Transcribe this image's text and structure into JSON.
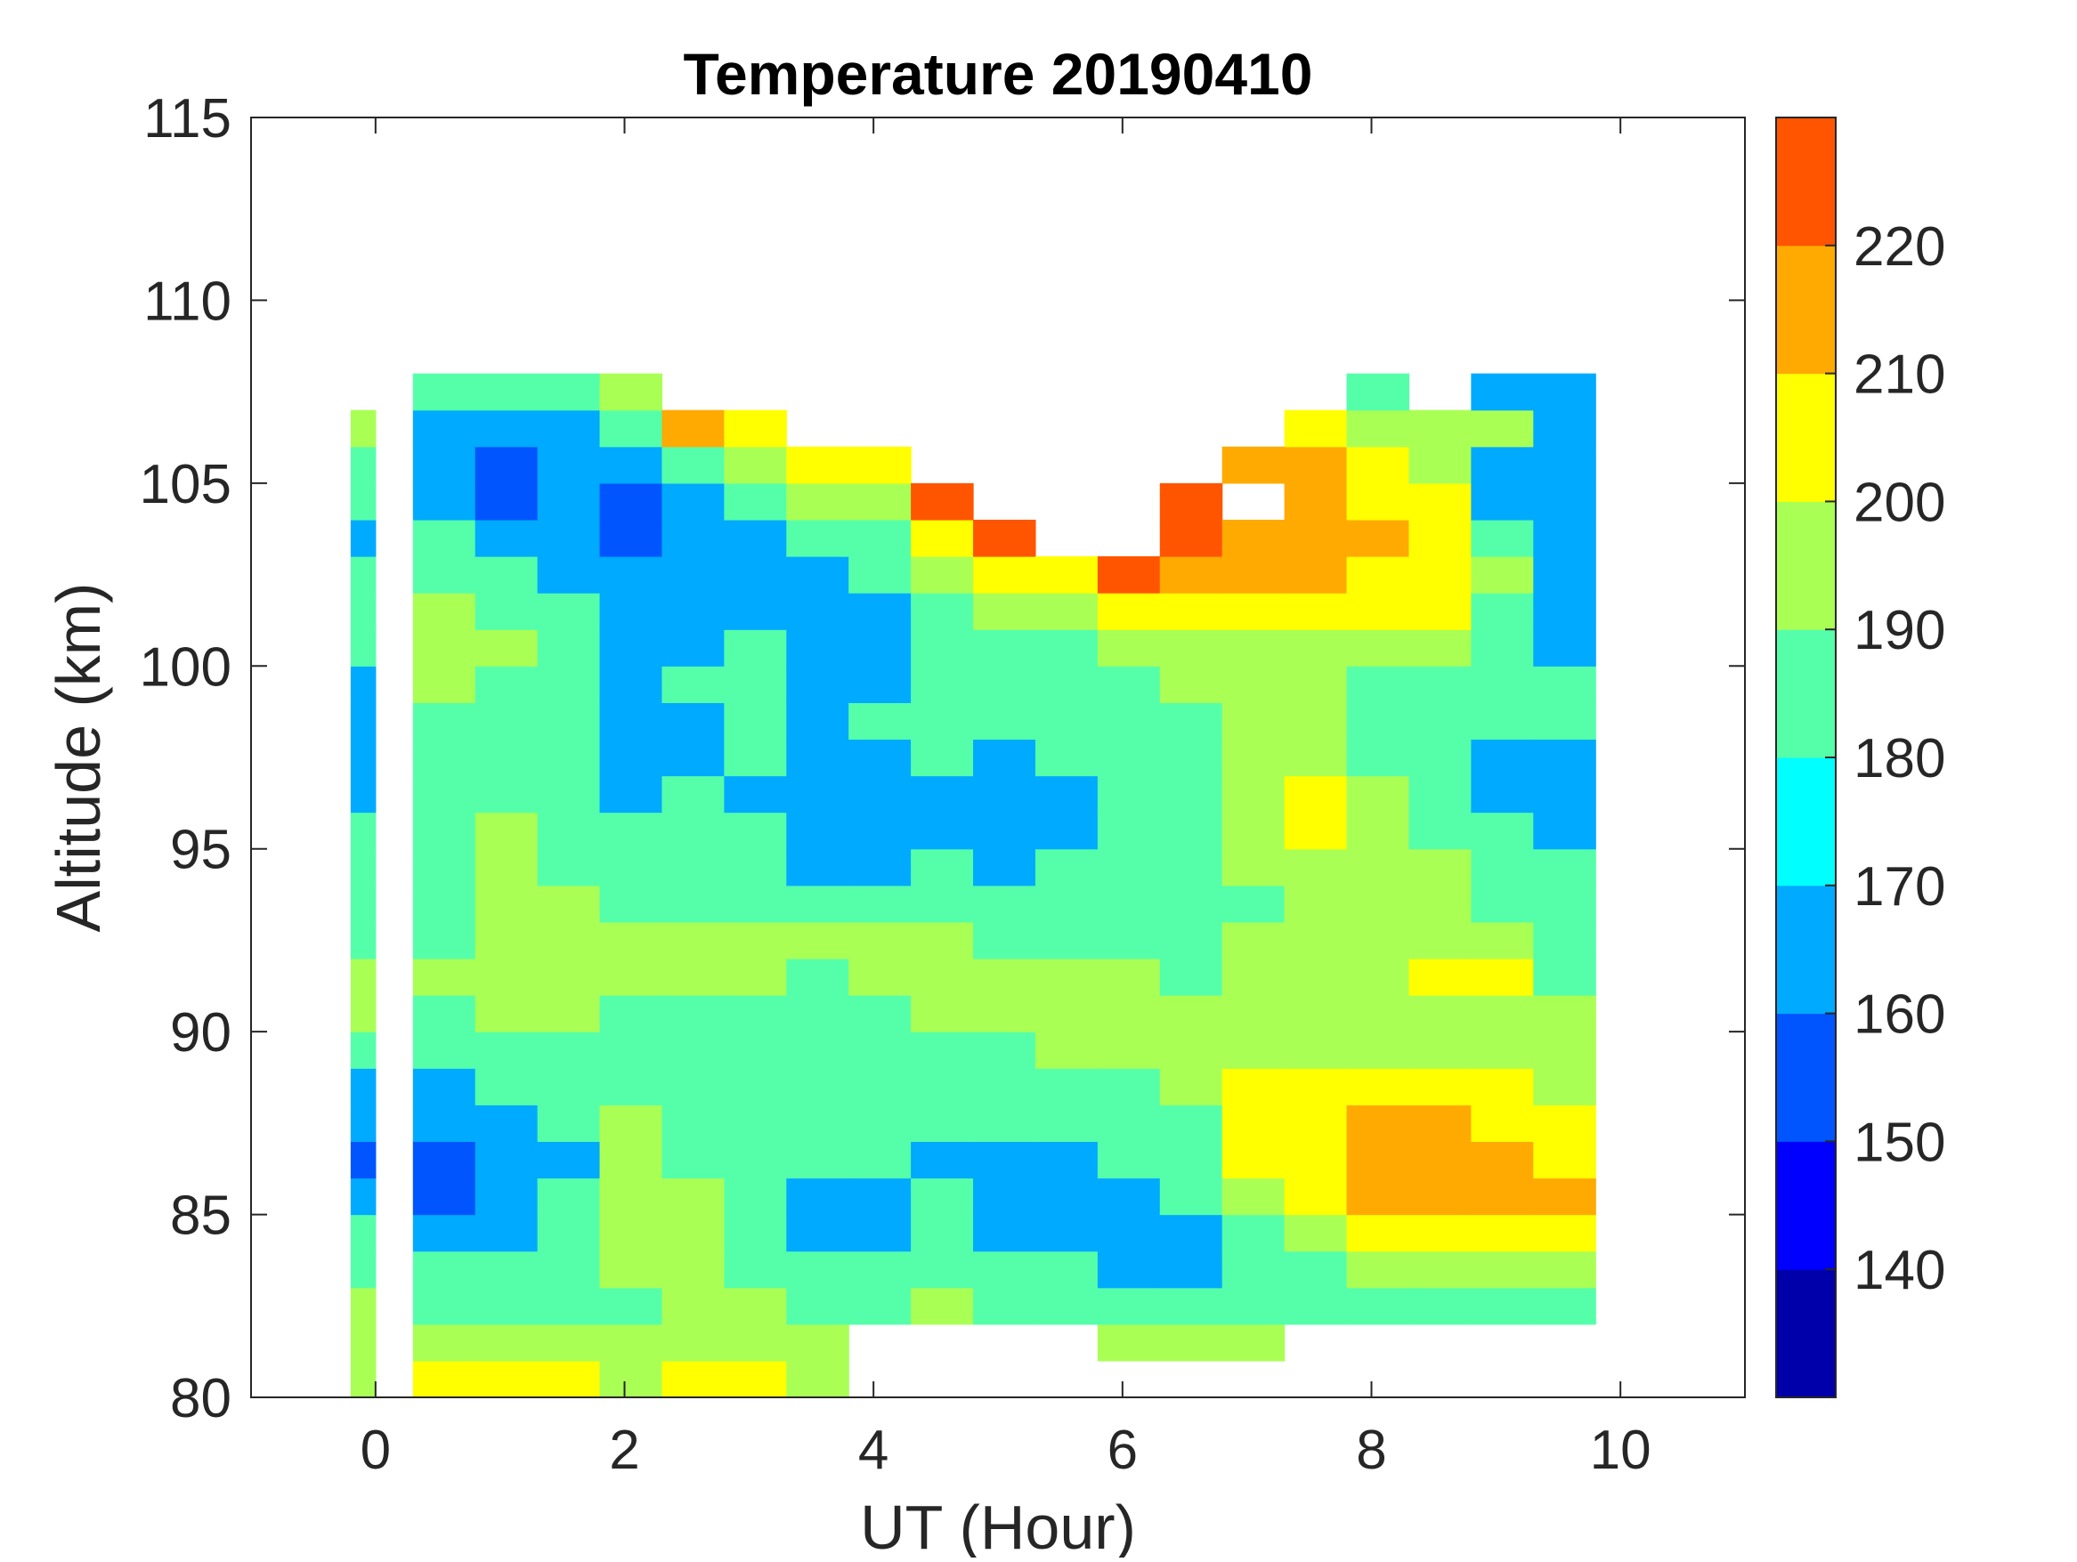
{
  "chart_data": {
    "type": "heatmap",
    "title": "Temperature 20190410",
    "xlabel": "UT (Hour)",
    "ylabel": "Altitude (km)",
    "xlim": [
      -1,
      11
    ],
    "ylim": [
      80,
      115
    ],
    "xticks": [
      "0",
      "2",
      "4",
      "6",
      "8",
      "10"
    ],
    "yticks": [
      "80",
      "85",
      "90",
      "95",
      "100",
      "105",
      "110",
      "115"
    ],
    "colorbar": {
      "range": [
        130,
        230
      ],
      "ticks": [
        "140",
        "150",
        "160",
        "170",
        "180",
        "190",
        "200",
        "210",
        "220"
      ],
      "levels": [
        130,
        140,
        150,
        160,
        170,
        180,
        190,
        200,
        210,
        220,
        230
      ],
      "colors": [
        "#0000aa",
        "#0000ff",
        "#0055ff",
        "#00aaff",
        "#00ffff",
        "#55ffaa",
        "#aaff55",
        "#ffff00",
        "#ffaa00",
        "#ff5500"
      ]
    },
    "grid": false,
    "altitudes": [
      80.5,
      81.5,
      82.5,
      83.5,
      84.5,
      85.5,
      86.5,
      87.5,
      88.5,
      89.5,
      90.5,
      91.5,
      92.5,
      93.5,
      94.5,
      95.5,
      96.5,
      97.5,
      98.5,
      99.5,
      100.5,
      101.5,
      102.5,
      103.5,
      104.5,
      105.5,
      106.5,
      107.5,
      108.5
    ],
    "columns": [
      {
        "x": [
          -0.2,
          0.0
        ],
        "T": [
          195,
          195,
          195,
          185,
          185,
          165,
          155,
          165,
          165,
          185,
          195,
          195,
          185,
          185,
          185,
          185,
          165,
          165,
          165,
          165,
          185,
          185,
          185,
          165,
          185,
          185,
          195,
          null,
          null
        ]
      },
      {
        "x": [
          0.3,
          0.8
        ],
        "T": [
          205,
          195,
          185,
          185,
          165,
          155,
          155,
          165,
          165,
          185,
          185,
          195,
          185,
          185,
          185,
          185,
          185,
          185,
          185,
          195,
          195,
          195,
          185,
          185,
          165,
          165,
          165,
          185,
          null
        ]
      },
      {
        "x": [
          0.8,
          1.3
        ],
        "T": [
          205,
          195,
          185,
          185,
          165,
          165,
          165,
          165,
          185,
          185,
          195,
          195,
          195,
          195,
          195,
          195,
          185,
          185,
          185,
          185,
          195,
          185,
          185,
          165,
          155,
          155,
          165,
          185,
          null
        ]
      },
      {
        "x": [
          1.3,
          1.8
        ],
        "T": [
          205,
          195,
          185,
          185,
          185,
          185,
          165,
          185,
          185,
          185,
          195,
          195,
          195,
          195,
          185,
          185,
          185,
          185,
          185,
          185,
          185,
          185,
          165,
          165,
          165,
          165,
          165,
          185,
          null
        ]
      },
      {
        "x": [
          1.8,
          2.3
        ],
        "T": [
          195,
          195,
          185,
          195,
          195,
          195,
          195,
          195,
          185,
          185,
          185,
          195,
          195,
          185,
          185,
          185,
          165,
          165,
          165,
          165,
          165,
          165,
          165,
          155,
          155,
          165,
          185,
          195,
          null
        ]
      },
      {
        "x": [
          2.3,
          2.8
        ],
        "T": [
          205,
          195,
          195,
          195,
          195,
          195,
          185,
          185,
          185,
          185,
          185,
          195,
          195,
          185,
          185,
          185,
          185,
          165,
          165,
          185,
          165,
          165,
          165,
          165,
          165,
          185,
          215,
          null,
          null
        ]
      },
      {
        "x": [
          2.8,
          3.3
        ],
        "T": [
          205,
          195,
          195,
          185,
          185,
          185,
          185,
          185,
          185,
          185,
          185,
          195,
          195,
          185,
          185,
          185,
          165,
          185,
          185,
          185,
          185,
          165,
          165,
          165,
          185,
          195,
          205,
          null,
          null
        ]
      },
      {
        "x": [
          3.3,
          3.8
        ],
        "T": [
          195,
          195,
          185,
          185,
          165,
          165,
          185,
          185,
          185,
          185,
          185,
          185,
          195,
          185,
          165,
          165,
          165,
          165,
          165,
          165,
          165,
          165,
          165,
          185,
          195,
          205,
          null,
          null,
          null
        ]
      },
      {
        "x": [
          3.8,
          4.3
        ],
        "T": [
          null,
          null,
          185,
          185,
          165,
          165,
          185,
          185,
          185,
          185,
          185,
          195,
          195,
          185,
          165,
          165,
          165,
          165,
          185,
          165,
          165,
          165,
          185,
          185,
          195,
          205,
          null,
          null,
          null
        ]
      },
      {
        "x": [
          4.3,
          4.8
        ],
        "T": [
          null,
          null,
          195,
          185,
          185,
          185,
          165,
          185,
          185,
          185,
          195,
          195,
          195,
          185,
          185,
          165,
          165,
          185,
          185,
          185,
          185,
          185,
          195,
          205,
          225,
          null,
          null,
          null,
          null
        ]
      },
      {
        "x": [
          4.8,
          5.3
        ],
        "T": [
          null,
          null,
          185,
          185,
          165,
          165,
          165,
          185,
          185,
          185,
          195,
          195,
          185,
          185,
          165,
          165,
          165,
          165,
          185,
          185,
          185,
          195,
          205,
          225,
          null,
          null,
          null,
          null,
          null
        ]
      },
      {
        "x": [
          5.3,
          5.8
        ],
        "T": [
          null,
          null,
          185,
          185,
          165,
          165,
          165,
          185,
          185,
          195,
          195,
          195,
          185,
          185,
          185,
          165,
          165,
          185,
          185,
          185,
          185,
          195,
          205,
          null,
          null,
          null,
          null,
          null,
          null
        ]
      },
      {
        "x": [
          5.8,
          6.3
        ],
        "T": [
          null,
          195,
          185,
          165,
          165,
          165,
          185,
          185,
          185,
          195,
          195,
          195,
          185,
          185,
          185,
          185,
          185,
          185,
          185,
          185,
          195,
          205,
          225,
          null,
          null,
          null,
          null,
          null,
          null
        ]
      },
      {
        "x": [
          6.3,
          6.8
        ],
        "T": [
          null,
          195,
          185,
          165,
          165,
          185,
          185,
          185,
          195,
          195,
          195,
          185,
          185,
          185,
          185,
          185,
          185,
          185,
          185,
          195,
          195,
          205,
          215,
          225,
          225,
          null,
          null,
          null,
          null
        ]
      },
      {
        "x": [
          6.8,
          7.3
        ],
        "T": [
          null,
          195,
          185,
          185,
          185,
          195,
          205,
          205,
          205,
          195,
          195,
          195,
          195,
          185,
          195,
          195,
          195,
          195,
          195,
          195,
          195,
          205,
          215,
          215,
          null,
          215,
          null,
          null,
          null
        ]
      },
      {
        "x": [
          7.3,
          7.8
        ],
        "T": [
          null,
          null,
          185,
          185,
          195,
          205,
          205,
          205,
          205,
          195,
          195,
          195,
          195,
          195,
          195,
          205,
          205,
          195,
          195,
          195,
          195,
          205,
          215,
          215,
          215,
          215,
          205,
          null,
          null
        ]
      },
      {
        "x": [
          7.8,
          8.3
        ],
        "T": [
          null,
          null,
          185,
          195,
          205,
          215,
          215,
          215,
          205,
          195,
          195,
          195,
          195,
          195,
          195,
          195,
          195,
          185,
          185,
          185,
          195,
          205,
          205,
          215,
          205,
          205,
          195,
          185,
          null
        ]
      },
      {
        "x": [
          8.3,
          8.8
        ],
        "T": [
          null,
          null,
          185,
          195,
          205,
          215,
          215,
          215,
          205,
          195,
          195,
          205,
          195,
          195,
          195,
          185,
          185,
          185,
          185,
          185,
          195,
          205,
          205,
          205,
          205,
          195,
          195,
          null,
          null
        ]
      },
      {
        "x": [
          8.8,
          9.3
        ],
        "T": [
          null,
          null,
          185,
          195,
          205,
          215,
          215,
          205,
          205,
          195,
          195,
          205,
          195,
          185,
          185,
          185,
          165,
          165,
          185,
          185,
          185,
          185,
          195,
          185,
          165,
          165,
          195,
          165,
          null
        ]
      },
      {
        "x": [
          9.3,
          9.8
        ],
        "T": [
          null,
          null,
          185,
          195,
          205,
          215,
          205,
          205,
          195,
          195,
          195,
          185,
          185,
          185,
          185,
          165,
          165,
          165,
          185,
          185,
          165,
          165,
          165,
          165,
          165,
          165,
          165,
          165,
          null
        ]
      }
    ]
  }
}
